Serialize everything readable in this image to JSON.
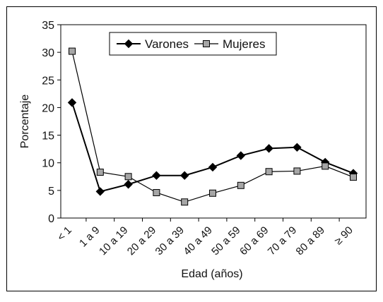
{
  "chart_data": {
    "type": "line",
    "title": "",
    "xlabel": "Edad (años)",
    "ylabel": "Porcentaje",
    "ylim": [
      0,
      35
    ],
    "yticks": [
      0,
      5,
      10,
      15,
      20,
      25,
      30,
      35
    ],
    "grid": false,
    "legend_position": "top-center",
    "categories": [
      "< 1",
      "1 a 9",
      "10 a 19",
      "20 a 29",
      "30 a 39",
      "40 a 49",
      "50 a 59",
      "60 a 69",
      "70 a 79",
      "80 a 89",
      "≥ 90"
    ],
    "series": [
      {
        "name": "Varones",
        "marker": "diamond",
        "color": "#000000",
        "marker_fill": "#000000",
        "values": [
          20.9,
          4.8,
          6.1,
          7.7,
          7.7,
          9.2,
          11.3,
          12.6,
          12.8,
          10.1,
          8.1
        ]
      },
      {
        "name": "Mujeres",
        "marker": "square",
        "color": "#000000",
        "marker_fill": "#a6a6a6",
        "values": [
          30.2,
          8.3,
          7.5,
          4.6,
          2.9,
          4.5,
          5.9,
          8.4,
          8.5,
          9.4,
          7.4
        ]
      }
    ]
  }
}
